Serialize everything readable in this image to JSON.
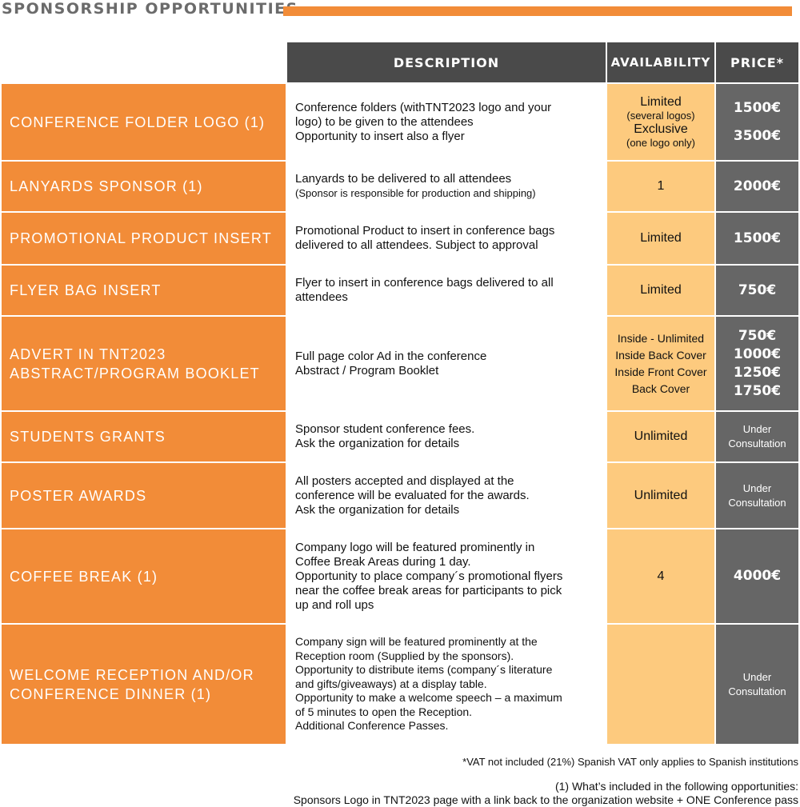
{
  "title": "SPONSORSHIP OPPORTUNITIES",
  "colors": {
    "accent": "#f28c38",
    "header": "#4a4a4a",
    "availability": "#fdca7e",
    "price": "#666666"
  },
  "headers": {
    "description": "DESCRIPTION",
    "availability": "AVAILABILITY",
    "price": "PRICE*"
  },
  "rows": [
    {
      "name": [
        "CONFERENCE FOLDER LOGO (1)"
      ],
      "desc": [
        {
          "t": "Conference folders (withTNT2023 logo and your"
        },
        {
          "t": "logo) to be given to the attendees"
        },
        {
          "t": "Opportunity to insert also a flyer"
        }
      ],
      "avail": [
        {
          "t": "Limited"
        },
        {
          "t": "(several logos)",
          "s": true
        },
        {
          "t": "Exclusive"
        },
        {
          "t": "(one logo only)",
          "s": true
        }
      ],
      "price": [
        "1500€",
        "3500€"
      ]
    },
    {
      "name": [
        "LANYARDS SPONSOR (1)"
      ],
      "desc": [
        {
          "t": "Lanyards to be delivered to all attendees"
        },
        {
          "t": "(Sponsor is responsible for production and shipping)",
          "s": true
        }
      ],
      "avail": [
        {
          "t": "1"
        }
      ],
      "price": [
        "2000€"
      ]
    },
    {
      "name": [
        "PROMOTIONAL PRODUCT INSERT"
      ],
      "desc": [
        {
          "t": "Promotional Product to insert in conference bags"
        },
        {
          "t": "delivered to all attendees. Subject to approval"
        }
      ],
      "avail": [
        {
          "t": "Limited"
        }
      ],
      "price": [
        "1500€"
      ]
    },
    {
      "name": [
        "FLYER BAG INSERT"
      ],
      "desc": [
        {
          "t": "Flyer to insert in conference bags delivered to all"
        },
        {
          "t": "attendees"
        }
      ],
      "avail": [
        {
          "t": "Limited"
        }
      ],
      "price": [
        "750€"
      ]
    },
    {
      "name": [
        "ADVERT IN TNT2023",
        "ABSTRACT/PROGRAM BOOKLET"
      ],
      "desc": [
        {
          "t": "Full page color Ad in the  conference"
        },
        {
          "t": "Abstract / Program Booklet"
        }
      ],
      "avail": [
        {
          "t": "Inside - Unlimited",
          "m": true
        },
        {
          "t": "Inside Back Cover",
          "m": true
        },
        {
          "t": "Inside Front Cover",
          "m": true
        },
        {
          "t": "Back Cover",
          "m": true
        }
      ],
      "price": [
        "750€",
        "1000€",
        "1250€",
        "1750€"
      ]
    },
    {
      "name": [
        "STUDENTS GRANTS"
      ],
      "desc": [
        {
          "t": "Sponsor student conference fees."
        },
        {
          "t": "Ask the organization for details"
        }
      ],
      "avail": [
        {
          "t": "Unlimited"
        }
      ],
      "consult": [
        "Under",
        "Consultation"
      ]
    },
    {
      "name": [
        "POSTER AWARDS"
      ],
      "desc": [
        {
          "t": "All posters accepted and displayed at the"
        },
        {
          "t": "conference will be evaluated for the awards."
        },
        {
          "t": "Ask the organization for details"
        }
      ],
      "avail": [
        {
          "t": "Unlimited"
        }
      ],
      "consult": [
        "Under",
        "Consultation"
      ]
    },
    {
      "name": [
        "COFFEE BREAK (1)"
      ],
      "desc": [
        {
          "t": "Company logo will be featured prominently in"
        },
        {
          "t": "Coffee Break Areas during 1 day."
        },
        {
          "t": "Opportunity to place company´s promotional flyers"
        },
        {
          "t": "near the coffee break areas for participants to pick"
        },
        {
          "t": "up and roll ups"
        }
      ],
      "avail": [
        {
          "t": "4"
        }
      ],
      "price": [
        "4000€"
      ]
    },
    {
      "name": [
        "WELCOME RECEPTION AND/OR",
        "CONFERENCE DINNER (1)"
      ],
      "desc": [
        {
          "t": "Company sign will be featured prominently at the",
          "s2": true
        },
        {
          "t": "Reception room (Supplied by the sponsors).",
          "s2": true
        },
        {
          "t": "Opportunity to distribute items (company´s literature",
          "s2": true
        },
        {
          "t": "and gifts/giveaways) at a display table.",
          "s2": true
        },
        {
          "t": "Opportunity to make a welcome speech – a maximum",
          "s2": true
        },
        {
          "t": "of 5 minutes to open the Reception.",
          "s2": true
        },
        {
          "t": "Additional Conference Passes.",
          "s2": true
        }
      ],
      "avail": [],
      "consult": [
        "Under",
        "Consultation"
      ]
    }
  ],
  "footer": {
    "vat": "*VAT not included (21%) Spanish VAT only applies to Spanish institutions",
    "included_title": "(1) What’s included in the following opportunities:",
    "included_text": "Sponsors Logo in TNT2023 page with a link back to the organization website + ONE Conference pass"
  }
}
